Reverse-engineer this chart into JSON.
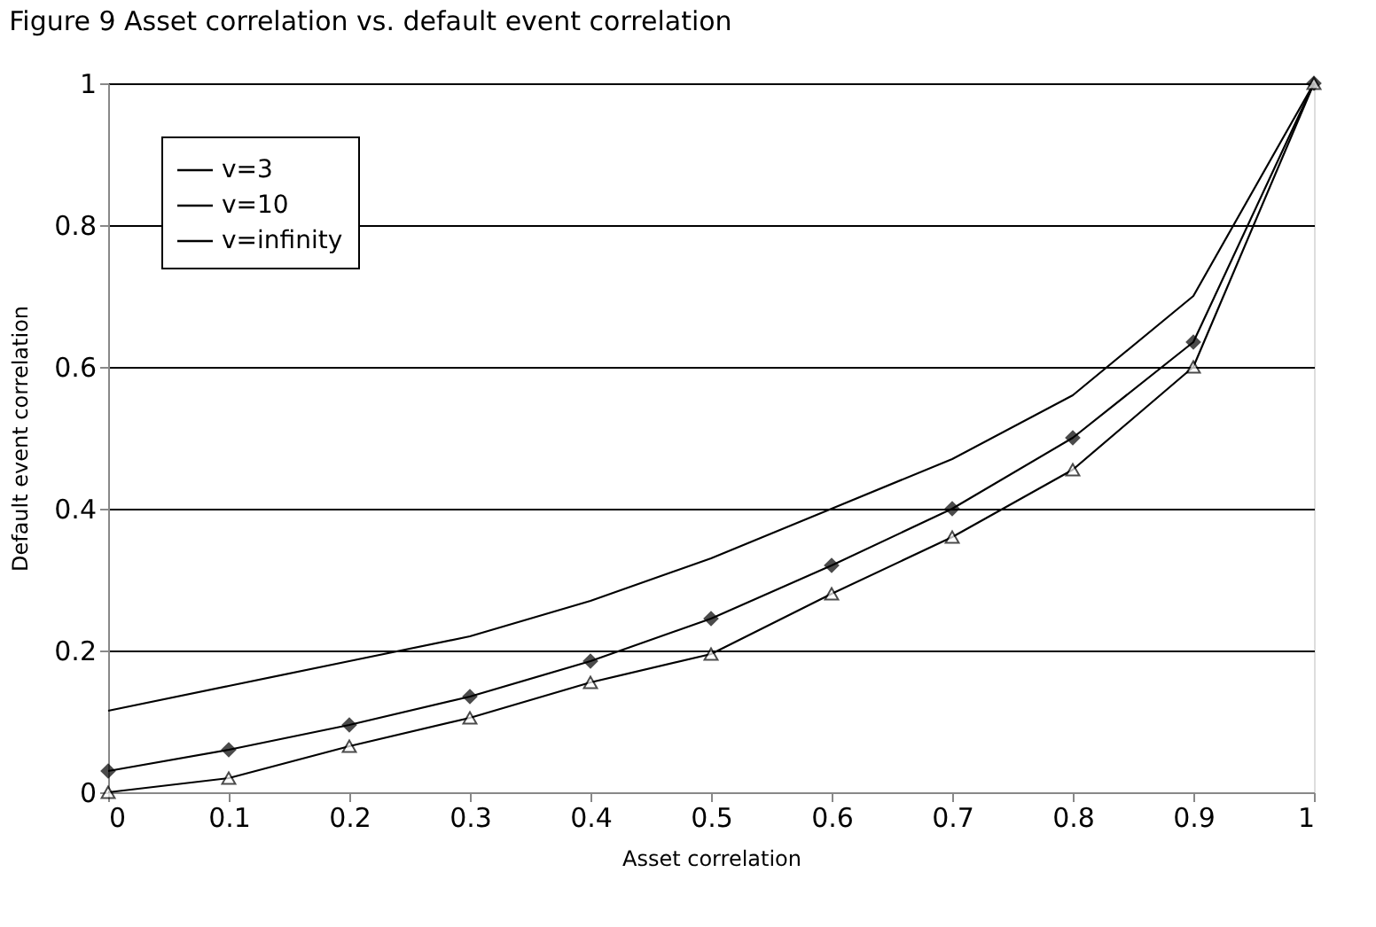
{
  "chart_data": {
    "type": "line",
    "title": "Figure 9  Asset correlation vs. default event correlation",
    "xlabel": "Asset correlation",
    "ylabel": "Default event correlation",
    "x": [
      0,
      0.1,
      0.2,
      0.3,
      0.4,
      0.5,
      0.6,
      0.7,
      0.8,
      0.9,
      1
    ],
    "series": [
      {
        "name": "v=3",
        "color": "#000000",
        "marker": "none",
        "values": [
          0.115,
          0.15,
          0.185,
          0.22,
          0.27,
          0.33,
          0.4,
          0.47,
          0.56,
          0.7,
          1
        ]
      },
      {
        "name": "v=10",
        "color": "#000000",
        "marker": "diamond",
        "values": [
          0.03,
          0.06,
          0.095,
          0.135,
          0.185,
          0.245,
          0.32,
          0.4,
          0.5,
          0.635,
          1
        ]
      },
      {
        "name": "v=infinity",
        "color": "#000000",
        "marker": "triangle",
        "values": [
          0,
          0.02,
          0.065,
          0.105,
          0.155,
          0.195,
          0.28,
          0.36,
          0.455,
          0.6,
          1
        ]
      }
    ],
    "xlim": [
      0,
      1
    ],
    "xticks": [
      0,
      0.1,
      0.2,
      0.3,
      0.4,
      0.5,
      0.6,
      0.7,
      0.8,
      0.9,
      1
    ],
    "ylim": [
      0,
      1
    ],
    "yticks": [
      0,
      0.2,
      0.4,
      0.6,
      0.8,
      1
    ],
    "grid": "y",
    "legend": "top left",
    "line_style": "solid"
  }
}
